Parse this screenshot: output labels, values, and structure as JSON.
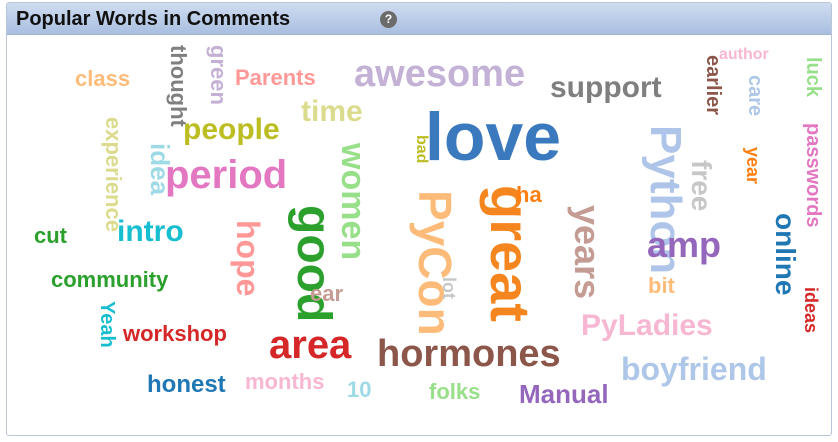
{
  "header": {
    "title": "Popular Words in Comments",
    "help_glyph": "?"
  },
  "words": [
    {
      "text": "love",
      "color": "#3a79bd"
    },
    {
      "text": "Python",
      "color": "#aec4e8"
    },
    {
      "text": "great",
      "color": "#f5861f"
    },
    {
      "text": "PyCon",
      "color": "#fcbb79"
    },
    {
      "text": "good",
      "color": "#2ca02c"
    },
    {
      "text": "awesome",
      "color": "#c4b1d6"
    },
    {
      "text": "hormones",
      "color": "#8c564b"
    },
    {
      "text": "area",
      "color": "#d62728"
    },
    {
      "text": "period",
      "color": "#e377c2"
    },
    {
      "text": "years",
      "color": "#c49c94"
    },
    {
      "text": "amp",
      "color": "#9467bd"
    },
    {
      "text": "women",
      "color": "#98df8a"
    },
    {
      "text": "boyfriend",
      "color": "#aec7e8"
    },
    {
      "text": "PyLadies",
      "color": "#f7b6d2"
    },
    {
      "text": "hope",
      "color": "#ff9896"
    },
    {
      "text": "intro",
      "color": "#17becf"
    },
    {
      "text": "support",
      "color": "#7f7f7f"
    },
    {
      "text": "people",
      "color": "#bcbd22"
    },
    {
      "text": "time",
      "color": "#dbdb8d"
    },
    {
      "text": "online",
      "color": "#1f77b4"
    },
    {
      "text": "free",
      "color": "#c7c7c7"
    },
    {
      "text": "idea",
      "color": "#9edae5"
    },
    {
      "text": "experience",
      "color": "#dbdb8d"
    },
    {
      "text": "thought",
      "color": "#7f7f7f"
    },
    {
      "text": "green",
      "color": "#c5b0d5"
    },
    {
      "text": "Parents",
      "color": "#ff9896"
    },
    {
      "text": "class",
      "color": "#ffbb78"
    },
    {
      "text": "earlier",
      "color": "#8c564b"
    },
    {
      "text": "care",
      "color": "#aec7e8"
    },
    {
      "text": "author",
      "color": "#f7b6d2"
    },
    {
      "text": "luck",
      "color": "#98df8a"
    },
    {
      "text": "passwords",
      "color": "#e377c2"
    },
    {
      "text": "year",
      "color": "#ff7f0e"
    },
    {
      "text": "ideas",
      "color": "#d62728"
    },
    {
      "text": "bad",
      "color": "#bcbd22"
    },
    {
      "text": "ha",
      "color": "#ff7f0e"
    },
    {
      "text": "lot",
      "color": "#c7c7c7"
    },
    {
      "text": "ear",
      "color": "#c49c94"
    },
    {
      "text": "bit",
      "color": "#ffbb78"
    },
    {
      "text": "cut",
      "color": "#2ca02c"
    },
    {
      "text": "community",
      "color": "#2ca02c"
    },
    {
      "text": "Yeah",
      "color": "#17becf"
    },
    {
      "text": "workshop",
      "color": "#d62728"
    },
    {
      "text": "honest",
      "color": "#1f77b4"
    },
    {
      "text": "months",
      "color": "#f7b6d2"
    },
    {
      "text": "10",
      "color": "#9edae5"
    },
    {
      "text": "folks",
      "color": "#98df8a"
    },
    {
      "text": "Manual",
      "color": "#9467bd"
    }
  ]
}
